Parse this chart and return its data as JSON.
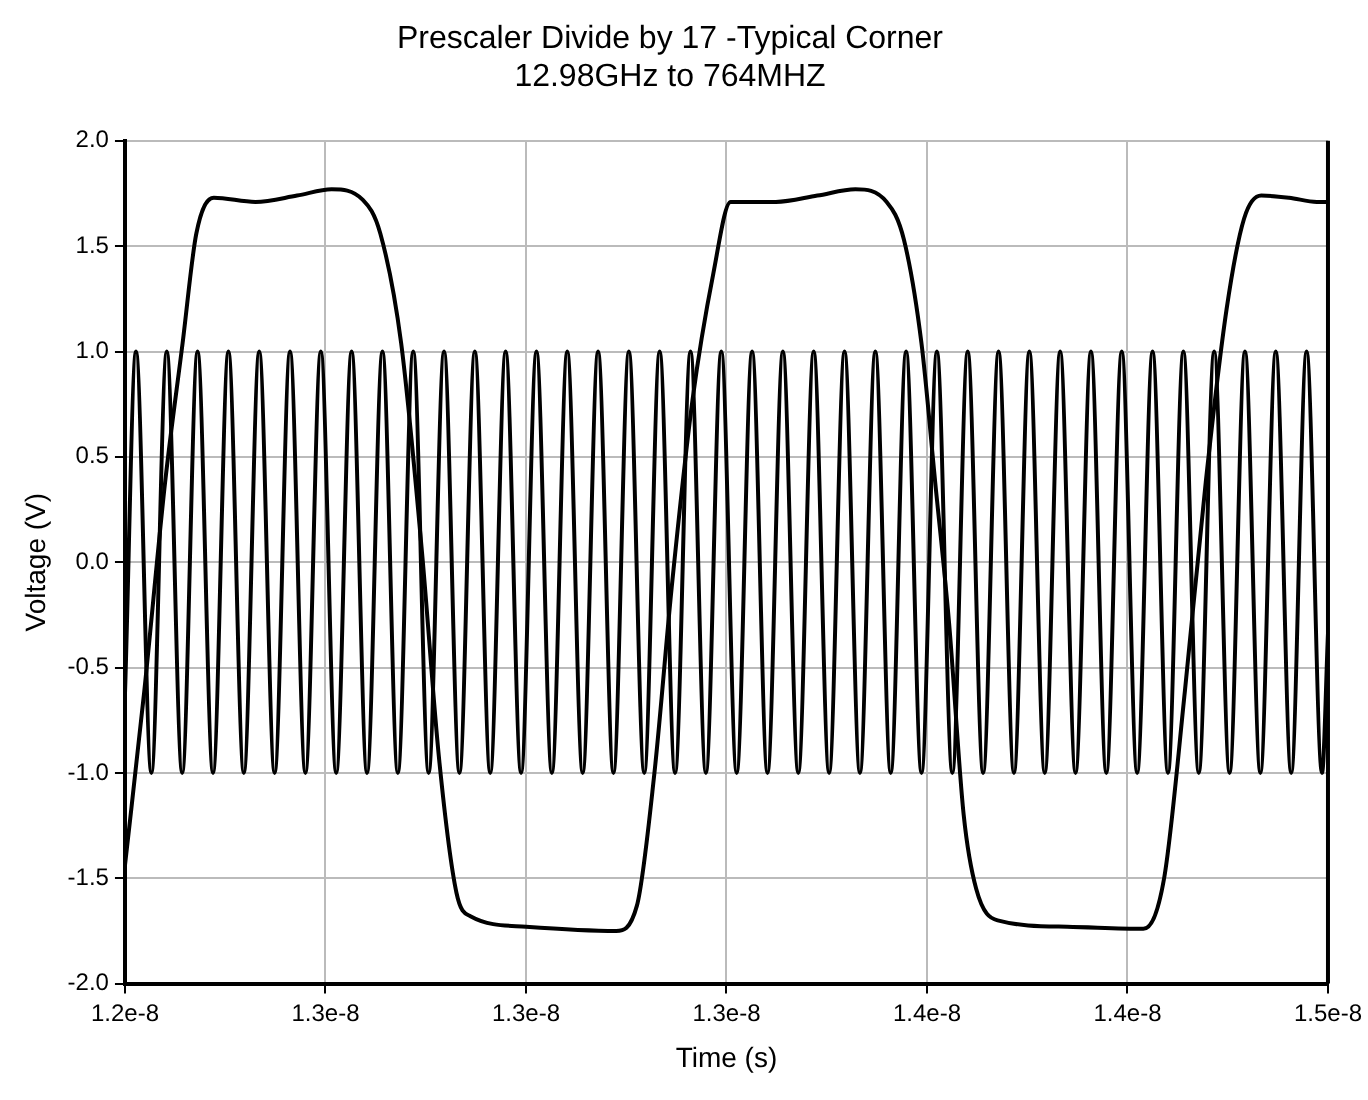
{
  "chart_data": {
    "type": "line",
    "title": "Prescaler Divide by 17 -Typical Corner",
    "subtitle": "12.98GHz to 764MHZ",
    "xlabel": "Time (s)",
    "ylabel": "Voltage (V)",
    "xlim": [
      1.2e-08,
      1.5e-08
    ],
    "xticks": [
      {
        "value": 1.2e-08,
        "label": "1.2e-8"
      },
      {
        "value": 1.25e-08,
        "label": "1.3e-8"
      },
      {
        "value": 1.3e-08,
        "label": "1.3e-8"
      },
      {
        "value": 1.35e-08,
        "label": "1.3e-8"
      },
      {
        "value": 1.4e-08,
        "label": "1.4e-8"
      },
      {
        "value": 1.45e-08,
        "label": "1.4e-8"
      },
      {
        "value": 1.5e-08,
        "label": "1.5e-8"
      }
    ],
    "ylim": [
      -2,
      2
    ],
    "yticks": [
      {
        "value": -2,
        "label": "-2.0"
      },
      -1.5,
      {
        "value": -1,
        "label": "-1.0"
      },
      -0.5,
      {
        "value": 0,
        "label": "0.0"
      },
      0.5,
      {
        "value": 1,
        "label": "1.0"
      },
      1.5,
      {
        "value": 2,
        "label": "2.0"
      }
    ],
    "grid": true,
    "legend": false,
    "marker": "none",
    "line_style": "solid",
    "series": [
      {
        "color": "#000000",
        "x": [
          1.2e-08,
          1.20275e-08,
          1.20659e-08,
          1.21043e-08,
          1.21427e-08,
          1.21811e-08,
          1.22196e-08,
          1.2258e-08,
          1.22964e-08,
          1.23348e-08,
          1.23732e-08,
          1.24116e-08,
          1.245e-08,
          1.24884e-08,
          1.25268e-08,
          1.25652e-08,
          1.26037e-08,
          1.26421e-08,
          1.26805e-08,
          1.27189e-08,
          1.27573e-08,
          1.27957e-08,
          1.28341e-08,
          1.28725e-08,
          1.29109e-08,
          1.29493e-08,
          1.29878e-08,
          1.30262e-08,
          1.30646e-08,
          1.3103e-08,
          1.31414e-08,
          1.31798e-08,
          1.32182e-08,
          1.32566e-08,
          1.3295e-08,
          1.33334e-08,
          1.33719e-08,
          1.34103e-08,
          1.34487e-08,
          1.34871e-08,
          1.35255e-08,
          1.35639e-08,
          1.36023e-08,
          1.36407e-08,
          1.36791e-08,
          1.37175e-08,
          1.3756e-08,
          1.37944e-08,
          1.38328e-08,
          1.38712e-08,
          1.39096e-08,
          1.3948e-08,
          1.39864e-08,
          1.40248e-08,
          1.40632e-08,
          1.41016e-08,
          1.41401e-08,
          1.41785e-08,
          1.42169e-08,
          1.42553e-08,
          1.42937e-08,
          1.43321e-08,
          1.43705e-08,
          1.44089e-08,
          1.44473e-08,
          1.44857e-08,
          1.45242e-08,
          1.45626e-08,
          1.4601e-08,
          1.46394e-08,
          1.46778e-08,
          1.47162e-08,
          1.47546e-08,
          1.4793e-08,
          1.48314e-08,
          1.48698e-08,
          1.49083e-08,
          1.49467e-08,
          1.49851e-08,
          1.5e-08
        ],
        "values": [
          -0.63,
          1,
          -1,
          1,
          -1,
          1,
          -1,
          1,
          -1,
          1,
          -1,
          1,
          -1,
          1,
          -1,
          1,
          -1,
          1,
          -1,
          1,
          -1,
          1,
          -1,
          1,
          -1,
          1,
          -1,
          1,
          -1,
          1,
          -1,
          1,
          -1,
          1,
          -1,
          1,
          -1,
          1,
          -1,
          1,
          -1,
          1,
          -1,
          1,
          -1,
          1,
          -1,
          1,
          -1,
          1,
          -1,
          1,
          -1,
          1,
          -1,
          1,
          -1,
          1,
          -1,
          1,
          -1,
          1,
          -1,
          1,
          -1,
          1,
          -1,
          1,
          -1,
          1,
          -1,
          1,
          -1,
          1,
          -1,
          1,
          -1,
          1,
          -1,
          -0.34
        ]
      },
      {
        "color": "#000000",
        "x": [
          1.2e-08,
          1.20483e-08,
          1.21002e-08,
          1.21438e-08,
          1.2178e-08,
          1.22216e-08,
          1.23254e-08,
          1.24292e-08,
          1.25154e-08,
          1.25932e-08,
          1.26368e-08,
          1.26887e-08,
          1.27406e-08,
          1.27837e-08,
          1.28268e-08,
          1.28615e-08,
          1.30001e-08,
          1.32248e-08,
          1.32767e-08,
          1.33198e-08,
          1.33634e-08,
          1.34153e-08,
          1.34672e-08,
          1.35103e-08,
          1.36229e-08,
          1.37267e-08,
          1.38217e-08,
          1.38995e-08,
          1.39426e-08,
          1.39862e-08,
          1.40205e-08,
          1.40552e-08,
          1.40916e-08,
          1.41227e-08,
          1.41762e-08,
          1.43495e-08,
          1.45395e-08,
          1.45914e-08,
          1.46433e-08,
          1.46952e-08,
          1.47471e-08,
          1.47907e-08,
          1.48337e-08,
          1.49028e-08,
          1.49723e-08,
          1.5e-08
        ],
        "values": [
          -1.44,
          -0.61,
          0.38,
          1.04,
          1.56,
          1.73,
          1.71,
          1.74,
          1.77,
          1.72,
          1.56,
          1.04,
          0.05,
          -0.94,
          -1.57,
          -1.68,
          -1.73,
          -1.75,
          -1.63,
          -1.01,
          -0.12,
          0.77,
          1.37,
          1.71,
          1.71,
          1.74,
          1.77,
          1.71,
          1.53,
          1.04,
          0.38,
          -0.29,
          -1.2,
          -1.55,
          -1.7,
          -1.73,
          -1.74,
          -1.5,
          -0.61,
          0.38,
          1.2,
          1.63,
          1.74,
          1.73,
          1.71,
          1.71
        ]
      }
    ]
  }
}
